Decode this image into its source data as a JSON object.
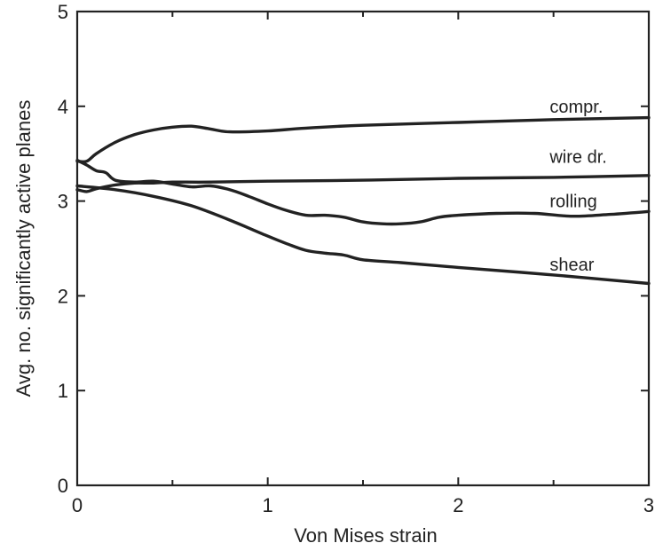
{
  "chart_data": {
    "type": "line",
    "title": "",
    "xlabel": "Von Mises strain",
    "ylabel": "Avg. no. significantly active planes",
    "xlim": [
      0,
      3
    ],
    "ylim": [
      0,
      5
    ],
    "xticks": [
      0,
      1,
      2,
      3
    ],
    "yticks": [
      0,
      1,
      2,
      3,
      4,
      5
    ],
    "xtick_labels": [
      "0",
      "1",
      "2",
      "3"
    ],
    "ytick_labels": [
      "0",
      "1",
      "2",
      "3",
      "4",
      "5"
    ],
    "grid": false,
    "legend": "inline labels at right end of lines",
    "series": [
      {
        "name": "compr.",
        "x": [
          0,
          0.05,
          0.1,
          0.2,
          0.3,
          0.4,
          0.5,
          0.6,
          0.7,
          0.8,
          1.0,
          1.2,
          1.5,
          2.0,
          2.5,
          3.0
        ],
        "y": [
          3.42,
          3.42,
          3.5,
          3.62,
          3.7,
          3.75,
          3.78,
          3.79,
          3.76,
          3.73,
          3.74,
          3.77,
          3.8,
          3.83,
          3.86,
          3.88
        ]
      },
      {
        "name": "wire dr.",
        "x": [
          0,
          0.05,
          0.1,
          0.2,
          0.3,
          0.4,
          0.5,
          0.7,
          1.0,
          1.5,
          2.0,
          2.5,
          3.0
        ],
        "y": [
          3.12,
          3.1,
          3.13,
          3.17,
          3.19,
          3.19,
          3.2,
          3.2,
          3.21,
          3.22,
          3.24,
          3.25,
          3.27
        ]
      },
      {
        "name": "rolling",
        "x": [
          0,
          0.05,
          0.1,
          0.15,
          0.2,
          0.3,
          0.4,
          0.5,
          0.6,
          0.7,
          0.8,
          0.9,
          1.0,
          1.1,
          1.2,
          1.3,
          1.4,
          1.5,
          1.6,
          1.7,
          1.8,
          1.9,
          2.0,
          2.2,
          2.4,
          2.6,
          2.8,
          3.0
        ],
        "y": [
          3.43,
          3.38,
          3.32,
          3.3,
          3.22,
          3.2,
          3.21,
          3.18,
          3.15,
          3.16,
          3.12,
          3.05,
          2.97,
          2.9,
          2.85,
          2.85,
          2.83,
          2.78,
          2.76,
          2.76,
          2.78,
          2.83,
          2.85,
          2.87,
          2.87,
          2.84,
          2.86,
          2.89
        ]
      },
      {
        "name": "shear",
        "x": [
          0,
          0.2,
          0.4,
          0.6,
          0.8,
          1.0,
          1.1,
          1.2,
          1.3,
          1.4,
          1.5,
          1.7,
          2.0,
          2.5,
          3.0
        ],
        "y": [
          3.16,
          3.12,
          3.05,
          2.95,
          2.8,
          2.63,
          2.55,
          2.48,
          2.45,
          2.43,
          2.38,
          2.35,
          2.3,
          2.22,
          2.13
        ]
      }
    ],
    "series_labels": [
      {
        "text": "compr.",
        "x": 2.48,
        "y": 4.0
      },
      {
        "text": "wire dr.",
        "x": 2.48,
        "y": 3.47
      },
      {
        "text": "rolling",
        "x": 2.48,
        "y": 3.0
      },
      {
        "text": "shear",
        "x": 2.48,
        "y": 2.33
      }
    ]
  }
}
